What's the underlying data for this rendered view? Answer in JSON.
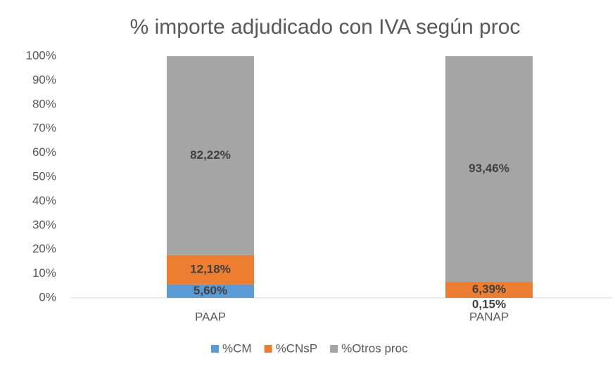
{
  "chart_data": {
    "type": "stacked_bar",
    "title": "% importe adjudicado con IVA según proc",
    "categories": [
      "PAAP",
      "PANAP"
    ],
    "series": [
      {
        "name": "%CM",
        "color": "#5b9bd5",
        "values": [
          5.6,
          0.15
        ],
        "value_labels": [
          "5,60%",
          "0,15%"
        ]
      },
      {
        "name": "%CNsP",
        "color": "#ed7d31",
        "values": [
          12.18,
          6.39
        ],
        "value_labels": [
          "12,18%",
          "6,39%"
        ]
      },
      {
        "name": "%Otros proc",
        "color": "#a5a5a5",
        "values": [
          82.22,
          93.46
        ],
        "value_labels": [
          "82,22%",
          "93,46%"
        ]
      }
    ],
    "ylim": [
      0,
      100
    ],
    "yticks": [
      {
        "value": 0,
        "label": "0%"
      },
      {
        "value": 10,
        "label": "10%"
      },
      {
        "value": 20,
        "label": "20%"
      },
      {
        "value": 30,
        "label": "30%"
      },
      {
        "value": 40,
        "label": "40%"
      },
      {
        "value": 50,
        "label": "50%"
      },
      {
        "value": 60,
        "label": "60%"
      },
      {
        "value": 70,
        "label": "70%"
      },
      {
        "value": 80,
        "label": "80%"
      },
      {
        "value": 90,
        "label": "90%"
      },
      {
        "value": 100,
        "label": "100%"
      }
    ],
    "grid": false,
    "legend": "bottom"
  }
}
